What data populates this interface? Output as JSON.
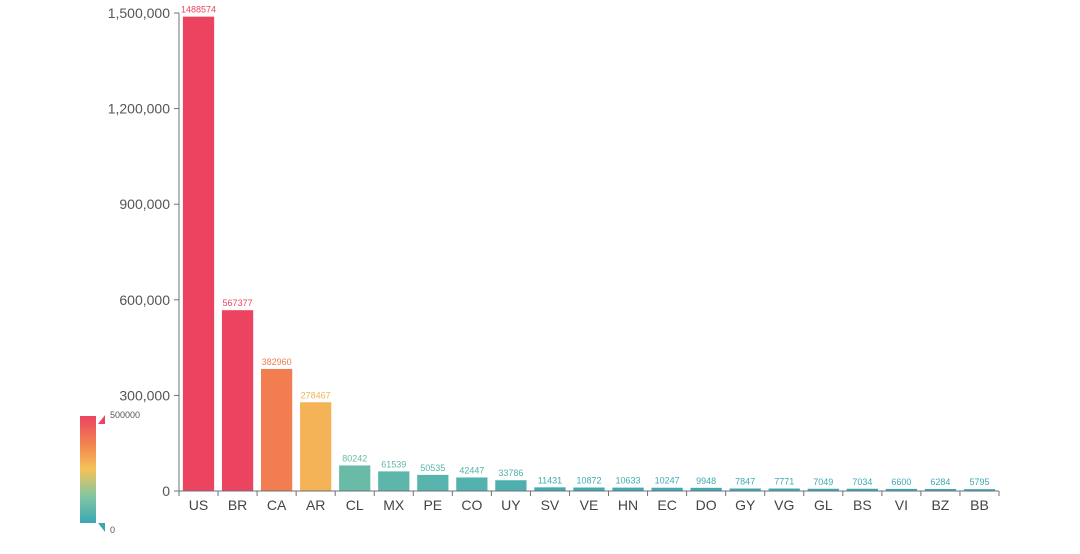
{
  "chart_data": {
    "type": "bar",
    "categories": [
      "US",
      "BR",
      "CA",
      "AR",
      "CL",
      "MX",
      "PE",
      "CO",
      "UY",
      "SV",
      "VE",
      "HN",
      "EC",
      "DO",
      "GY",
      "VG",
      "GL",
      "BS",
      "VI",
      "BZ",
      "BB"
    ],
    "values": [
      1488574,
      567377,
      382960,
      278467,
      80242,
      61539,
      50535,
      42447,
      33786,
      11431,
      10872,
      10633,
      10247,
      9948,
      7847,
      7771,
      7049,
      7034,
      6600,
      6284,
      5795
    ],
    "ylim": [
      0,
      1500000
    ],
    "yticks": [
      0,
      300000,
      600000,
      900000,
      1200000,
      1500000
    ],
    "ytick_labels": [
      "0",
      "300,000",
      "600,000",
      "900,000",
      "1,200,000",
      "1,500,000"
    ],
    "data_labels": [
      "1488574",
      "567377",
      "382960",
      "278467",
      "80242",
      "61539",
      "50535",
      "42447",
      "33786",
      "11431",
      "10872",
      "10633",
      "10247",
      "9948",
      "7847",
      "7771",
      "7049",
      "7034",
      "6600",
      "6284",
      "5795"
    ],
    "title": "",
    "xlabel": "",
    "ylabel": "",
    "grid": false
  },
  "visual_map": {
    "min": 0,
    "max": 500000,
    "min_label": "0",
    "max_label": "500000",
    "colors": [
      "#3ba7b4",
      "#82c6a0",
      "#f5c25a",
      "#f1814f",
      "#ec4460"
    ]
  }
}
